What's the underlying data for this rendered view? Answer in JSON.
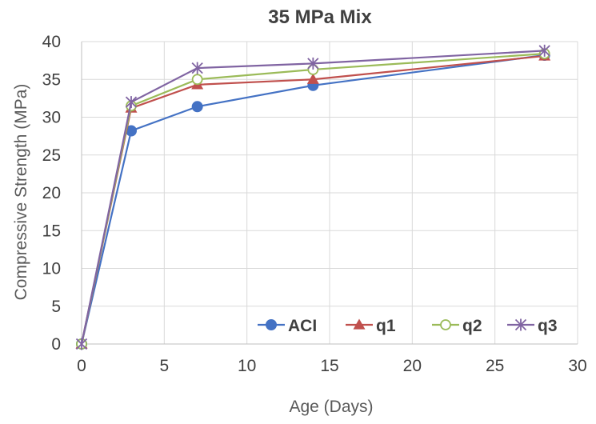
{
  "chart_data": {
    "type": "line",
    "title": "35 MPa Mix",
    "xlabel": "Age (Days)",
    "ylabel": "Compressive Strength (MPa)",
    "xlim": [
      0,
      30
    ],
    "ylim": [
      0,
      40
    ],
    "xticks": [
      "0",
      "5",
      "10",
      "15",
      "20",
      "25",
      "30"
    ],
    "yticks": [
      "0",
      "5",
      "10",
      "15",
      "20",
      "25",
      "30",
      "35",
      "40"
    ],
    "grid": true,
    "legend_position": "bottom-inside",
    "x": [
      0,
      3,
      7,
      14,
      28
    ],
    "series": [
      {
        "name": "ACI",
        "values": [
          0,
          28.2,
          31.4,
          34.2,
          38.2
        ],
        "color": "#4472c4",
        "marker": "circle-filled"
      },
      {
        "name": "q1",
        "values": [
          0,
          31.2,
          34.3,
          35.0,
          38.1
        ],
        "color": "#c0504d",
        "marker": "triangle-filled"
      },
      {
        "name": "q2",
        "values": [
          0,
          31.5,
          35.0,
          36.3,
          38.4
        ],
        "color": "#9bbb59",
        "marker": "circle-open"
      },
      {
        "name": "q3",
        "values": [
          0,
          32.0,
          36.5,
          37.1,
          38.8
        ],
        "color": "#8064a2",
        "marker": "asterisk"
      }
    ]
  }
}
